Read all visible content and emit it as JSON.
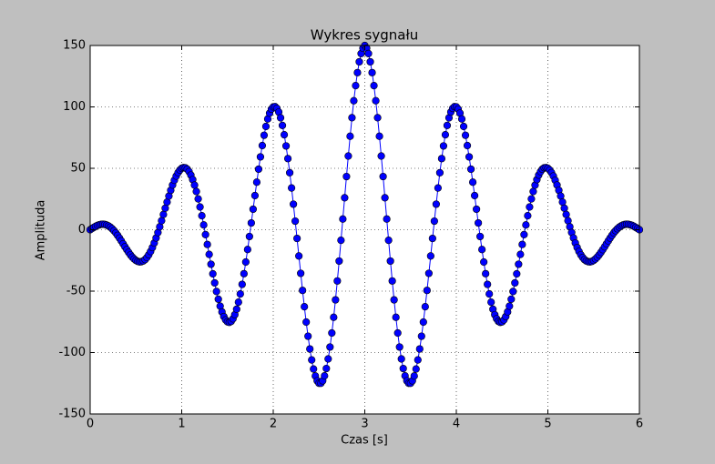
{
  "chart_data": {
    "type": "line",
    "title": "Wykres sygnału",
    "x_label": "Czas [s]",
    "y_label": "Amplituda",
    "xlim": [
      0,
      6
    ],
    "xticks": [
      0,
      1,
      2,
      3,
      4,
      5,
      6
    ],
    "ylim": [
      -150,
      150
    ],
    "yticks": [
      -150,
      -100,
      -50,
      0,
      50,
      100,
      150
    ],
    "grid": true,
    "x": [
      0,
      0.02,
      0.04,
      0.06,
      0.08,
      0.1,
      0.12,
      0.14,
      0.16,
      0.18,
      0.2,
      0.22,
      0.24,
      0.26,
      0.28,
      0.3,
      0.32,
      0.34,
      0.36,
      0.38,
      0.4,
      0.42,
      0.44,
      0.46,
      0.48,
      0.5,
      0.52,
      0.54,
      0.56,
      0.58,
      0.6,
      0.62,
      0.64,
      0.66,
      0.68,
      0.7,
      0.72,
      0.74,
      0.76,
      0.78,
      0.8,
      0.82,
      0.84,
      0.86,
      0.88,
      0.9,
      0.92,
      0.94,
      0.96,
      0.98,
      1,
      1.02,
      1.04,
      1.06,
      1.08,
      1.1,
      1.12,
      1.14,
      1.16,
      1.18,
      1.2,
      1.22,
      1.24,
      1.26,
      1.28,
      1.3,
      1.32,
      1.34,
      1.36,
      1.38,
      1.4,
      1.42,
      1.44,
      1.46,
      1.48,
      1.5,
      1.52,
      1.54,
      1.56,
      1.58,
      1.6,
      1.62,
      1.64,
      1.66,
      1.68,
      1.7,
      1.72,
      1.74,
      1.76,
      1.78,
      1.8,
      1.82,
      1.84,
      1.86,
      1.88,
      1.9,
      1.92,
      1.94,
      1.96,
      1.98,
      2,
      2.02,
      2.04,
      2.06,
      2.08,
      2.1,
      2.12,
      2.14,
      2.16,
      2.18,
      2.2,
      2.22,
      2.24,
      2.26,
      2.28,
      2.3,
      2.32,
      2.34,
      2.36,
      2.38,
      2.4,
      2.42,
      2.44,
      2.46,
      2.48,
      2.5,
      2.52,
      2.54,
      2.56,
      2.58,
      2.6,
      2.62,
      2.64,
      2.66,
      2.68,
      2.7,
      2.72,
      2.74,
      2.76,
      2.78,
      2.8,
      2.82,
      2.84,
      2.86,
      2.88,
      2.9,
      2.92,
      2.94,
      2.96,
      2.98,
      3,
      3.02,
      3.04,
      3.06,
      3.08,
      3.1,
      3.12,
      3.14,
      3.16,
      3.18,
      3.2,
      3.22,
      3.24,
      3.26,
      3.28,
      3.3,
      3.32,
      3.34,
      3.36,
      3.38,
      3.4,
      3.42,
      3.44,
      3.46,
      3.48,
      3.5,
      3.52,
      3.54,
      3.56,
      3.58,
      3.6,
      3.62,
      3.64,
      3.66,
      3.68,
      3.7,
      3.72,
      3.74,
      3.76,
      3.78,
      3.8,
      3.82,
      3.84,
      3.86,
      3.88,
      3.9,
      3.92,
      3.94,
      3.96,
      3.98,
      4,
      4.02,
      4.04,
      4.06,
      4.08,
      4.1,
      4.12,
      4.14,
      4.16,
      4.18,
      4.2,
      4.22,
      4.24,
      4.26,
      4.28,
      4.3,
      4.32,
      4.34,
      4.36,
      4.38,
      4.4,
      4.42,
      4.44,
      4.46,
      4.48,
      4.5,
      4.52,
      4.54,
      4.56,
      4.58,
      4.6,
      4.62,
      4.64,
      4.66,
      4.68,
      4.7,
      4.72,
      4.74,
      4.76,
      4.78,
      4.8,
      4.82,
      4.84,
      4.86,
      4.88,
      4.9,
      4.92,
      4.94,
      4.96,
      4.98,
      5,
      5.02,
      5.04,
      5.06,
      5.08,
      5.1,
      5.12,
      5.14,
      5.16,
      5.18,
      5.2,
      5.22,
      5.24,
      5.26,
      5.28,
      5.3,
      5.32,
      5.34,
      5.36,
      5.38,
      5.4,
      5.42,
      5.44,
      5.46,
      5.48,
      5.5,
      5.52,
      5.54,
      5.56,
      5.58,
      5.6,
      5.62,
      5.64,
      5.66,
      5.68,
      5.7,
      5.72,
      5.74,
      5.76,
      5.78,
      5.8,
      5.82,
      5.84,
      5.86,
      5.88,
      5.9,
      5.92,
      5.94,
      5.96,
      5.98,
      6
    ],
    "series": [
      {
        "color": "#0000ff",
        "values": [
          0,
          1.0,
          1.9,
          2.8,
          3.5,
          4.0,
          4.4,
          4.5,
          4.3,
          3.8,
          3.1,
          2.1,
          0.8,
          -0.8,
          -2.6,
          -4.6,
          -6.8,
          -9.1,
          -11.5,
          -13.9,
          -16.2,
          -18.4,
          -20.5,
          -22.3,
          -23.8,
          -25,
          -25.8,
          -26.2,
          -26.0,
          -25.4,
          -24.3,
          -22.6,
          -20.4,
          -17.7,
          -14.5,
          -10.8,
          -6.7,
          -2.3,
          2.4,
          7.3,
          12.4,
          17.5,
          22.5,
          27.4,
          32.1,
          36.4,
          40.3,
          43.7,
          46.5,
          48.6,
          50,
          50.6,
          50.4,
          49.3,
          47.3,
          44.5,
          40.8,
          36.3,
          31.1,
          25.1,
          18.5,
          11.4,
          3.9,
          -4.0,
          -12.0,
          -20.1,
          -28.1,
          -35.9,
          -43.3,
          -50.3,
          -56.6,
          -62.2,
          -66.9,
          -70.7,
          -73.4,
          -75,
          -75.4,
          -74.6,
          -72.5,
          -69.2,
          -64.7,
          -59.0,
          -52.3,
          -44.5,
          -35.8,
          -26.3,
          -16.1,
          -5.5,
          5.5,
          16.7,
          27.8,
          38.7,
          49.3,
          59.3,
          68.5,
          76.9,
          84.1,
          90.2,
          94.9,
          98.2,
          100,
          100.2,
          98.8,
          95.8,
          91.1,
          84.9,
          77.3,
          68.2,
          57.9,
          46.4,
          34.0,
          20.8,
          7.0,
          -7.1,
          -21.4,
          -35.5,
          -49.4,
          -62.7,
          -75.2,
          -86.7,
          -97.1,
          -106.0,
          -113.4,
          -119.1,
          -123.0,
          -125,
          -125.0,
          -123.0,
          -119.0,
          -113.0,
          -105.2,
          -95.5,
          -84.1,
          -71.3,
          -57.1,
          -41.7,
          -25.5,
          -8.6,
          8.7,
          26.0,
          43.3,
          60.0,
          76.1,
          91.2,
          105.0,
          117.3,
          127.9,
          136.7,
          143.4,
          147.8,
          150,
          147.8,
          143.4,
          136.7,
          127.9,
          117.3,
          105.0,
          91.2,
          76.1,
          60.0,
          43.3,
          26.0,
          8.7,
          -8.6,
          -25.5,
          -41.7,
          -57.1,
          -71.3,
          -84.1,
          -95.5,
          -105.2,
          -113.0,
          -119.0,
          -123.0,
          -125.0,
          -125,
          -123.0,
          -119.1,
          -113.4,
          -106.0,
          -97.1,
          -86.7,
          -75.2,
          -62.7,
          -49.4,
          -35.5,
          -21.4,
          -7.1,
          7.0,
          20.8,
          34.0,
          46.4,
          57.9,
          68.2,
          77.3,
          84.9,
          91.1,
          95.8,
          98.8,
          100.2,
          100,
          98.2,
          94.9,
          90.2,
          84.1,
          76.9,
          68.5,
          59.3,
          49.3,
          38.7,
          27.8,
          16.7,
          5.5,
          -5.5,
          -16.1,
          -26.3,
          -35.8,
          -44.5,
          -52.3,
          -59.0,
          -64.7,
          -69.2,
          -72.5,
          -74.6,
          -75.4,
          -75,
          -73.4,
          -70.7,
          -66.9,
          -62.2,
          -56.6,
          -50.3,
          -43.3,
          -35.9,
          -28.1,
          -20.1,
          -12.0,
          -4.0,
          3.9,
          11.4,
          18.5,
          25.1,
          31.1,
          36.3,
          40.8,
          44.5,
          47.3,
          49.3,
          50.4,
          50.6,
          50,
          48.6,
          46.5,
          43.7,
          40.3,
          36.4,
          32.1,
          27.4,
          22.5,
          17.5,
          12.4,
          7.3,
          2.4,
          -2.3,
          -6.7,
          -10.8,
          -14.5,
          -17.7,
          -20.4,
          -22.6,
          -24.3,
          -25.4,
          -26.0,
          -26.2,
          -25.8,
          -25,
          -23.8,
          -22.3,
          -20.5,
          -18.4,
          -16.2,
          -13.9,
          -11.5,
          -9.1,
          -6.8,
          -4.6,
          -2.6,
          -0.8,
          0.8,
          2.1,
          3.1,
          3.8,
          4.3,
          4.5,
          4.4,
          4.0,
          3.5,
          2.8,
          1.9,
          1.0,
          0
        ]
      }
    ]
  }
}
